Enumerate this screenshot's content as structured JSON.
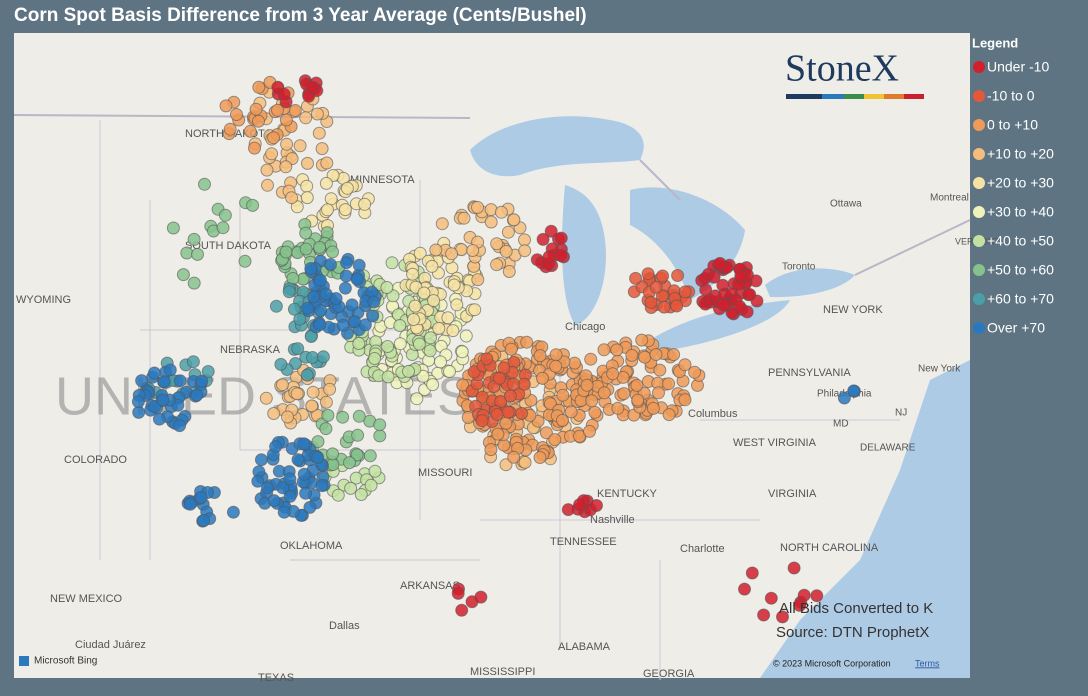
{
  "header": {
    "title": "Corn Spot Basis Difference from 3 Year Average (Cents/Bushel)"
  },
  "legend": {
    "title": "Legend",
    "items": [
      {
        "label": "Under -10",
        "color": "#d11f2d"
      },
      {
        "label": "-10 to 0",
        "color": "#e4573a"
      },
      {
        "label": "0 to +10",
        "color": "#ee9a58"
      },
      {
        "label": "+10 to +20",
        "color": "#f4bd7c"
      },
      {
        "label": "+20 to +30",
        "color": "#f6e3a4"
      },
      {
        "label": "+30 to +40",
        "color": "#eef3bc"
      },
      {
        "label": "+40 to +50",
        "color": "#c3e2a2"
      },
      {
        "label": "+50 to +60",
        "color": "#86c38c"
      },
      {
        "label": "+60 to +70",
        "color": "#4b9fa8"
      },
      {
        "label": "Over +70",
        "color": "#2a78bd"
      }
    ]
  },
  "logo": "StoneX",
  "map_labels": [
    "NORTH DAKOTA",
    "SOUTH DAKOTA",
    "MINNESOTA",
    "WYOMING",
    "NEBRASKA",
    "COLORADO",
    "MISSOURI",
    "OKLAHOMA",
    "KENTUCKY",
    "TENNESSEE",
    "ARKANSAS",
    "NEW MEXICO",
    "WEST VIRGINIA",
    "VIRGINIA",
    "NORTH CAROLINA",
    "PENNSYLVANIA",
    "NEW YORK",
    "DELAWARE",
    "MD",
    "NJ",
    "ALABAMA",
    "GEORGIA",
    "MISSISSIPPI",
    "TEXAS",
    "Chicago",
    "Columbus",
    "Nashville",
    "Charlotte",
    "Dallas",
    "Ottawa",
    "Toronto",
    "Montreal",
    "Philadelphia",
    "New York",
    "VERMONT",
    "Ciudad Juárez",
    "UNITED STATES"
  ],
  "notes": [
    "All Bids Converted to K",
    "Source: DTN ProphetX"
  ],
  "attribution": {
    "brand": "Microsoft Bing",
    "copyright": "© 2023 Microsoft Corporation",
    "terms": "Terms"
  }
}
